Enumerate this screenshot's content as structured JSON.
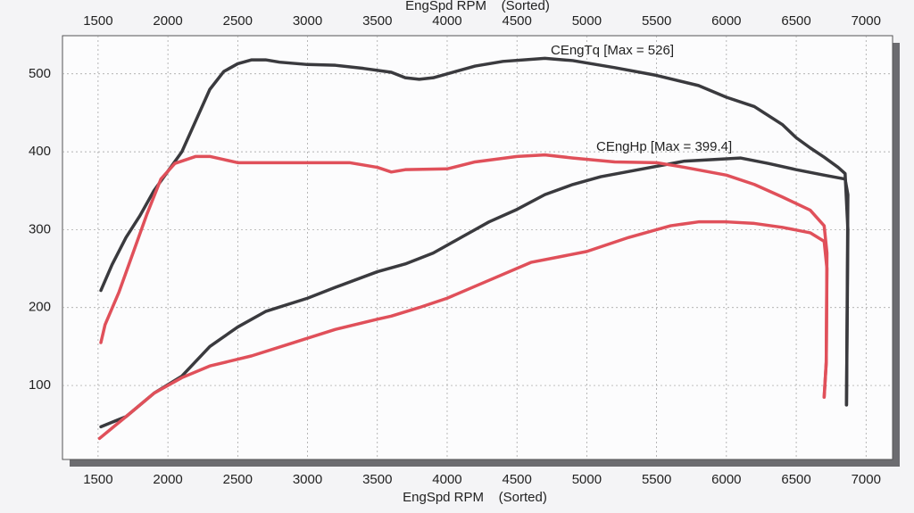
{
  "chart_data": {
    "type": "line",
    "x_label": "EngSpd RPM    (Sorted)",
    "xlim": [
      1245,
      7190
    ],
    "ylim": [
      5,
      549
    ],
    "xticks": [
      1500,
      2000,
      2500,
      3000,
      3500,
      4000,
      4500,
      5000,
      5500,
      6000,
      6500,
      7000
    ],
    "yticks": [
      100,
      200,
      300,
      400,
      500
    ],
    "grid": true,
    "annotations": [
      "CEngTq [Max = 526]",
      "CEngHp [Max = 399.4]"
    ],
    "series": [
      {
        "color": "#3a3a3e",
        "x": [
          1520,
          1600,
          1700,
          1800,
          1900,
          2000,
          2100,
          2200,
          2300,
          2400,
          2500,
          2600,
          2700,
          2800,
          3000,
          3200,
          3400,
          3600,
          3700,
          3800,
          3900,
          4000,
          4200,
          4400,
          4700,
          4900,
          5200,
          5500,
          5800,
          6000,
          6200,
          6400,
          6500,
          6600,
          6700,
          6800,
          6850,
          6870,
          6860
        ],
        "values": [
          222,
          255,
          290,
          318,
          350,
          375,
          400,
          440,
          480,
          503,
          513,
          518,
          518,
          515,
          512,
          511,
          507,
          502,
          495,
          493,
          495,
          500,
          510,
          516,
          520,
          517,
          508,
          498,
          485,
          470,
          458,
          435,
          418,
          405,
          393,
          380,
          372,
          300,
          75
        ]
      },
      {
        "color": "#3a3a3e",
        "x": [
          1520,
          1700,
          1900,
          2100,
          2300,
          2500,
          2700,
          3000,
          3200,
          3500,
          3700,
          3900,
          4100,
          4300,
          4500,
          4700,
          4900,
          5100,
          5400,
          5700,
          6000,
          6100,
          6300,
          6500,
          6700,
          6850,
          6870,
          6860
        ],
        "values": [
          47,
          60,
          90,
          112,
          150,
          175,
          195,
          212,
          226,
          246,
          256,
          270,
          290,
          310,
          326,
          345,
          358,
          368,
          378,
          388,
          391,
          392,
          385,
          377,
          370,
          365,
          345,
          75
        ]
      },
      {
        "color": "#e0505a",
        "x": [
          1520,
          1550,
          1650,
          1750,
          1850,
          1950,
          2050,
          2200,
          2300,
          2400,
          2500,
          2700,
          3000,
          3300,
          3500,
          3600,
          3700,
          4000,
          4200,
          4500,
          4700,
          4900,
          5200,
          5500,
          5700,
          6000,
          6200,
          6400,
          6600,
          6700,
          6720,
          6715,
          6700
        ],
        "values": [
          155,
          178,
          220,
          270,
          320,
          365,
          385,
          394,
          394,
          390,
          386,
          386,
          386,
          386,
          380,
          374,
          377,
          378,
          387,
          394,
          396,
          392,
          387,
          386,
          380,
          370,
          358,
          342,
          325,
          305,
          270,
          130,
          85
        ]
      },
      {
        "color": "#e0505a",
        "x": [
          1510,
          1700,
          1900,
          2100,
          2300,
          2600,
          2900,
          3200,
          3500,
          3600,
          3800,
          4000,
          4300,
          4600,
          4800,
          5000,
          5300,
          5600,
          5800,
          6000,
          6200,
          6400,
          6600,
          6700,
          6720,
          6715,
          6700
        ],
        "values": [
          32,
          60,
          90,
          110,
          125,
          138,
          155,
          172,
          185,
          189,
          200,
          212,
          235,
          258,
          265,
          272,
          290,
          305,
          310,
          310,
          308,
          303,
          296,
          285,
          250,
          130,
          85
        ]
      }
    ]
  }
}
